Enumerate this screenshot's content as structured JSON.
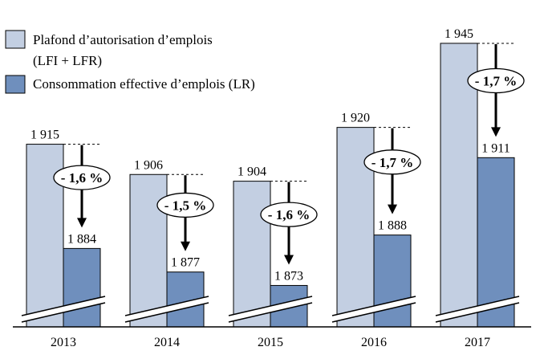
{
  "chart_data": {
    "type": "bar",
    "categories": [
      "2013",
      "2014",
      "2015",
      "2016",
      "2017"
    ],
    "series": [
      {
        "name": "Plafond d’autorisation d’emplois (LFI + LFR)",
        "values": [
          1915,
          1906,
          1904,
          1920,
          1945
        ],
        "labels": [
          "1 915",
          "1 906",
          "1 904",
          "1 920",
          "1 945"
        ],
        "color": "#c3cfe2"
      },
      {
        "name": "Consommation effective d’emplois (LR)",
        "values": [
          1884,
          1877,
          1873,
          1888,
          1911
        ],
        "labels": [
          "1 884",
          "1 877",
          "1 873",
          "1 888",
          "1 911"
        ],
        "color": "#6f8fbd"
      }
    ],
    "annotations": [
      "- 1,6 %",
      "- 1,5 %",
      "- 1,6 %",
      "- 1,7 %",
      "- 1,7 %"
    ],
    "legend_lines": [
      [
        "Plafond d’autorisation d’emplois",
        "(LFI + LFR)"
      ],
      [
        "Consommation effective d’emplois (LR)"
      ]
    ],
    "ylim": [
      1860,
      1950
    ],
    "axis_break": true,
    "legend_position": "top-left",
    "grid": false
  }
}
